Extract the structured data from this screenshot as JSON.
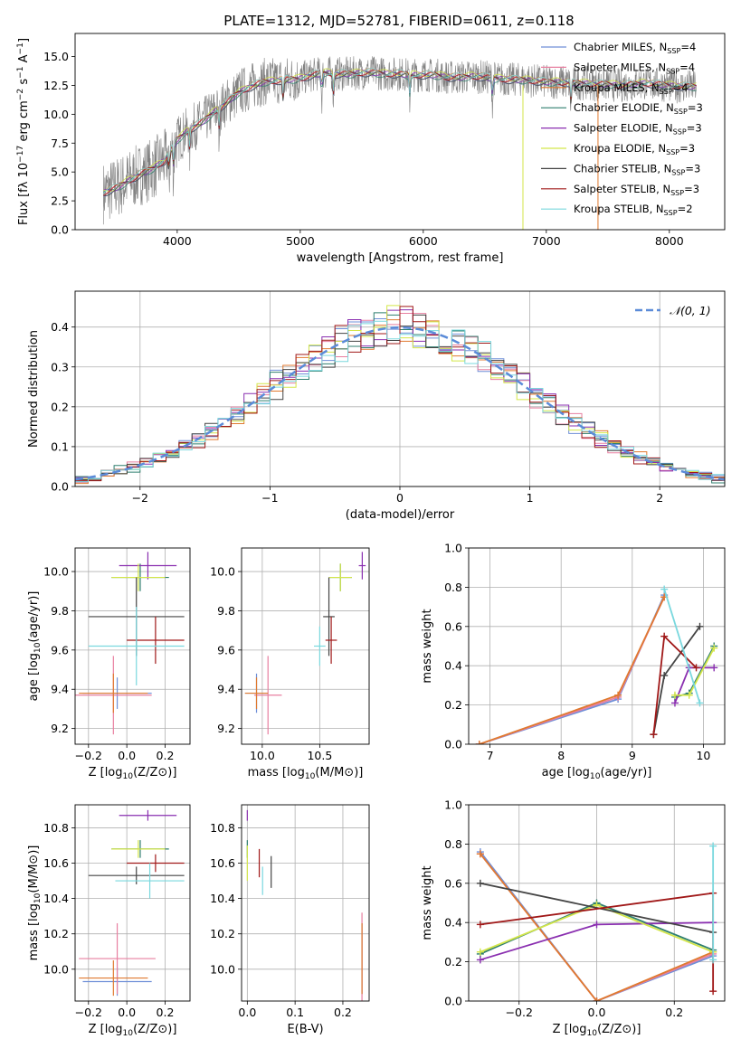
{
  "figure": {
    "title": "PLATE=1312, MJD=52781, FIBERID=0611, z=0.118",
    "series": [
      {
        "legend": "Chabrier MILES, N$_{SSP}$=4",
        "color": "#6f8fd8"
      },
      {
        "legend": "Salpeter MILES, N$_{SSP}$=4",
        "color": "#e87fa0"
      },
      {
        "legend": "Kroupa MILES, N$_{SSP}$=4",
        "color": "#e07a30"
      },
      {
        "legend": "Chabrier ELODIE, N$_{SSP}$=3",
        "color": "#2f7f6f"
      },
      {
        "legend": "Salpeter ELODIE, N$_{SSP}$=3",
        "color": "#8a2fb0"
      },
      {
        "legend": "Kroupa ELODIE, N$_{SSP}$=3",
        "color": "#d4e64a"
      },
      {
        "legend": "Chabrier STELIB, N$_{SSP}$=3",
        "color": "#444444"
      },
      {
        "legend": "Salpeter STELIB, N$_{SSP}$=3",
        "color": "#a01818"
      },
      {
        "legend": "Kroupa STELIB, N$_{SSP}$=2",
        "color": "#7ad8de"
      }
    ]
  },
  "chart_data": [
    {
      "id": "spectrum",
      "type": "line",
      "title": "PLATE=1312, MJD=52781, FIBERID=0611, z=0.118",
      "xlabel": "wavelength [Angstrom, rest frame]",
      "ylabel": "Flux [f$_\\lambda$ 10$^{-17}$ erg cm$^{-2}$ s$^{-1}$ A$^{-1}$]",
      "xlim": [
        3170,
        8450
      ],
      "ylim": [
        0,
        17
      ],
      "xticks": [
        4000,
        5000,
        6000,
        7000,
        8000
      ],
      "yticks": [
        0.0,
        2.5,
        5.0,
        7.5,
        10.0,
        12.5,
        15.0
      ],
      "grid": false,
      "legend_position": "top-right",
      "data_color": "#808080",
      "continuum": {
        "x": [
          3400,
          3500,
          3600,
          3700,
          3800,
          3900,
          4000,
          4100,
          4200,
          4300,
          4400,
          4500,
          4600,
          4700,
          4800,
          4900,
          5000,
          5100,
          5200,
          5300,
          5400,
          5500,
          5600,
          5700,
          5800,
          5900,
          6000,
          6100,
          6200,
          6300,
          6400,
          6500,
          6600,
          6700,
          6800,
          6900,
          7000,
          7100,
          7200,
          7300,
          7400,
          7500,
          7600,
          7700,
          7800,
          7900,
          8000,
          8100,
          8200
        ],
        "y": [
          3.2,
          3.6,
          4.2,
          4.8,
          5.3,
          6.0,
          7.8,
          8.7,
          9.3,
          10.2,
          11.0,
          11.9,
          12.4,
          12.8,
          12.9,
          13.0,
          13.1,
          13.4,
          13.6,
          13.5,
          13.5,
          13.6,
          13.6,
          13.5,
          13.5,
          13.4,
          13.4,
          13.4,
          13.2,
          13.2,
          13.3,
          13.2,
          13.1,
          13.0,
          13.0,
          12.9,
          12.8,
          12.8,
          12.7,
          12.7,
          12.6,
          12.6,
          12.5,
          12.6,
          12.7,
          12.6,
          12.5,
          12.4,
          12.4
        ]
      }
    },
    {
      "id": "residuals",
      "type": "histogram",
      "xlabel": "(data-model)/error",
      "ylabel": "Normed distribution",
      "xlim": [
        -2.5,
        2.5
      ],
      "ylim": [
        0,
        0.49
      ],
      "xticks": [
        -2,
        -1,
        0,
        1,
        2
      ],
      "yticks": [
        0.0,
        0.1,
        0.2,
        0.3,
        0.4
      ],
      "grid": true,
      "legend_position": "top-right",
      "reference_curve": {
        "label": "$\\mathcal{N}(0, 1)$",
        "mean": 0,
        "std": 1,
        "color": "#5b8bd8"
      },
      "bin_width": 0.1
    },
    {
      "id": "age-vs-Z",
      "type": "errorbar",
      "xlabel": "Z [log$_{10}$(Z/Z$_\\odot$)]",
      "ylabel": "age  [log$_{10}$(age/yr)]",
      "xlim": [
        -0.27,
        0.33
      ],
      "ylim": [
        9.12,
        10.12
      ],
      "xticks": [
        -0.2,
        0.0,
        0.2
      ],
      "yticks": [
        9.2,
        9.4,
        9.6,
        9.8,
        10.0
      ],
      "grid": true,
      "points": [
        {
          "series": 0,
          "x": -0.05,
          "y": 9.38,
          "xerr": 0.18,
          "yerr": 0.08
        },
        {
          "series": 1,
          "x": -0.07,
          "y": 9.37,
          "xerr": 0.2,
          "yerr": 0.2
        },
        {
          "series": 2,
          "x": -0.07,
          "y": 9.38,
          "xerr": 0.18,
          "yerr": 0.1
        },
        {
          "series": 3,
          "x": 0.07,
          "y": 9.97,
          "xerr": 0.15,
          "yerr": 0.07
        },
        {
          "series": 4,
          "x": 0.11,
          "y": 10.03,
          "xerr": 0.15,
          "yerr": 0.07
        },
        {
          "series": 5,
          "x": 0.06,
          "y": 9.97,
          "xerr": 0.14,
          "yerr": 0.07
        },
        {
          "series": 6,
          "x": 0.05,
          "y": 9.77,
          "xerr": 0.25,
          "yerr": 0.2
        },
        {
          "series": 7,
          "x": 0.15,
          "y": 9.65,
          "xerr": 0.15,
          "yerr": 0.12
        },
        {
          "series": 8,
          "x": 0.05,
          "y": 9.62,
          "xerr": 0.25,
          "yerr": 0.2
        }
      ]
    },
    {
      "id": "age-vs-mass",
      "type": "errorbar",
      "xlabel": "mass [log$_{10}$(M/M$_\\odot$)]",
      "ylabel": "",
      "xlim": [
        9.82,
        10.93
      ],
      "ylim": [
        9.12,
        10.12
      ],
      "xticks": [
        10.0,
        10.5
      ],
      "yticks": [
        9.2,
        9.4,
        9.6,
        9.8,
        10.0
      ],
      "grid": true,
      "points": [
        {
          "series": 0,
          "x": 9.95,
          "y": 9.38,
          "xerr": 0.1,
          "yerr": 0.1
        },
        {
          "series": 1,
          "x": 10.05,
          "y": 9.37,
          "xerr": 0.12,
          "yerr": 0.2
        },
        {
          "series": 2,
          "x": 9.95,
          "y": 9.38,
          "xerr": 0.1,
          "yerr": 0.08
        },
        {
          "series": 3,
          "x": 10.68,
          "y": 9.97,
          "xerr": 0.1,
          "yerr": 0.07
        },
        {
          "series": 4,
          "x": 10.87,
          "y": 10.03,
          "xerr": 0.03,
          "yerr": 0.07
        },
        {
          "series": 5,
          "x": 10.68,
          "y": 9.97,
          "xerr": 0.1,
          "yerr": 0.07
        },
        {
          "series": 6,
          "x": 10.58,
          "y": 9.77,
          "xerr": 0.05,
          "yerr": 0.2
        },
        {
          "series": 7,
          "x": 10.6,
          "y": 9.65,
          "xerr": 0.05,
          "yerr": 0.12
        },
        {
          "series": 8,
          "x": 10.5,
          "y": 9.62,
          "xerr": 0.05,
          "yerr": 0.1
        }
      ]
    },
    {
      "id": "weight-vs-age",
      "type": "line",
      "xlabel": "age  [log$_{10}$(age/yr)]",
      "ylabel": "mass weight",
      "xlim": [
        6.7,
        10.3
      ],
      "ylim": [
        0,
        1
      ],
      "xticks": [
        7,
        8,
        9,
        10
      ],
      "yticks": [
        0.0,
        0.2,
        0.4,
        0.6,
        0.8,
        1.0
      ],
      "grid": true,
      "series": [
        {
          "series": 0,
          "x": [
            6.85,
            8.8,
            9.45
          ],
          "y": [
            0.0,
            0.23,
            0.76
          ]
        },
        {
          "series": 1,
          "x": [
            6.85,
            8.8,
            9.45
          ],
          "y": [
            0.0,
            0.24,
            0.75
          ]
        },
        {
          "series": 2,
          "x": [
            6.85,
            8.8,
            9.45
          ],
          "y": [
            0.0,
            0.25,
            0.75
          ]
        },
        {
          "series": 3,
          "x": [
            9.6,
            9.8,
            10.15
          ],
          "y": [
            0.24,
            0.26,
            0.5
          ]
        },
        {
          "series": 4,
          "x": [
            9.6,
            9.8,
            10.15
          ],
          "y": [
            0.21,
            0.39,
            0.39
          ]
        },
        {
          "series": 5,
          "x": [
            9.6,
            9.8,
            10.15
          ],
          "y": [
            0.25,
            0.25,
            0.49
          ]
        },
        {
          "series": 6,
          "x": [
            9.3,
            9.45,
            9.95
          ],
          "y": [
            0.05,
            0.35,
            0.6
          ]
        },
        {
          "series": 7,
          "x": [
            9.3,
            9.45,
            9.9
          ],
          "y": [
            0.05,
            0.55,
            0.39
          ]
        },
        {
          "series": 8,
          "x": [
            9.45,
            9.95
          ],
          "y": [
            0.79,
            0.21
          ]
        }
      ]
    },
    {
      "id": "mass-vs-Z",
      "type": "errorbar",
      "xlabel": "Z [log$_{10}$(Z/Z$_\\odot$)]",
      "ylabel": "mass [log$_{10}$(M/M$_\\odot$)]",
      "xlim": [
        -0.27,
        0.33
      ],
      "ylim": [
        9.82,
        10.93
      ],
      "xticks": [
        -0.2,
        0.0,
        0.2
      ],
      "yticks": [
        10.0,
        10.2,
        10.4,
        10.6,
        10.8
      ],
      "grid": true,
      "points": [
        {
          "series": 0,
          "x": -0.05,
          "y": 9.93,
          "xerr": 0.18,
          "yerr": 0.08
        },
        {
          "series": 1,
          "x": -0.05,
          "y": 10.06,
          "xerr": 0.2,
          "yerr": 0.2
        },
        {
          "series": 2,
          "x": -0.07,
          "y": 9.95,
          "xerr": 0.18,
          "yerr": 0.1
        },
        {
          "series": 3,
          "x": 0.07,
          "y": 10.68,
          "xerr": 0.15,
          "yerr": 0.05
        },
        {
          "series": 4,
          "x": 0.11,
          "y": 10.87,
          "xerr": 0.15,
          "yerr": 0.03
        },
        {
          "series": 5,
          "x": 0.06,
          "y": 10.68,
          "xerr": 0.14,
          "yerr": 0.05
        },
        {
          "series": 6,
          "x": 0.05,
          "y": 10.53,
          "xerr": 0.25,
          "yerr": 0.05
        },
        {
          "series": 7,
          "x": 0.15,
          "y": 10.6,
          "xerr": 0.15,
          "yerr": 0.05
        },
        {
          "series": 8,
          "x": 0.12,
          "y": 10.5,
          "xerr": 0.18,
          "yerr": 0.1
        }
      ]
    },
    {
      "id": "mass-vs-ebv",
      "type": "errorbar",
      "xlabel": "E(B-V)",
      "ylabel": "",
      "xlim": [
        -0.012,
        0.255
      ],
      "ylim": [
        9.82,
        10.93
      ],
      "xticks": [
        0.0,
        0.1,
        0.2
      ],
      "yticks": [
        10.0,
        10.2,
        10.4,
        10.6,
        10.8
      ],
      "grid": true,
      "points": [
        {
          "series": 0,
          "x": 0.24,
          "y": 10.06,
          "xerr": 0,
          "yerr": 0.2
        },
        {
          "series": 1,
          "x": 0.24,
          "y": 10.06,
          "xerr": 0,
          "yerr": 0.26
        },
        {
          "series": 2,
          "x": 0.24,
          "y": 10.06,
          "xerr": 0,
          "yerr": 0.2
        },
        {
          "series": 3,
          "x": 0.0,
          "y": 10.68,
          "xerr": 0,
          "yerr": 0.05
        },
        {
          "series": 4,
          "x": 0.0,
          "y": 10.87,
          "xerr": 0,
          "yerr": 0.03
        },
        {
          "series": 5,
          "x": 0.0,
          "y": 10.6,
          "xerr": 0,
          "yerr": 0.1
        },
        {
          "series": 6,
          "x": 0.05,
          "y": 10.55,
          "xerr": 0,
          "yerr": 0.09
        },
        {
          "series": 7,
          "x": 0.025,
          "y": 10.6,
          "xerr": 0,
          "yerr": 0.08
        },
        {
          "series": 8,
          "x": 0.032,
          "y": 10.5,
          "xerr": 0,
          "yerr": 0.08
        }
      ]
    },
    {
      "id": "weight-vs-Z",
      "type": "line",
      "xlabel": "Z [log$_{10}$(Z/Z$_\\odot$)]",
      "ylabel": "mass weight",
      "xlim": [
        -0.33,
        0.33
      ],
      "ylim": [
        0,
        1
      ],
      "xticks": [
        -0.2,
        0.0,
        0.2
      ],
      "yticks": [
        0.0,
        0.2,
        0.4,
        0.6,
        0.8,
        1.0
      ],
      "grid": true,
      "series": [
        {
          "series": 0,
          "x": [
            -0.3,
            0.0,
            0.3
          ],
          "y": [
            0.76,
            0.0,
            0.23
          ]
        },
        {
          "series": 1,
          "x": [
            -0.3,
            0.0,
            0.3
          ],
          "y": [
            0.75,
            0.0,
            0.24
          ]
        },
        {
          "series": 2,
          "x": [
            -0.3,
            0.0,
            0.3
          ],
          "y": [
            0.75,
            0.0,
            0.25
          ]
        },
        {
          "series": 3,
          "x": [
            -0.3,
            0.0,
            0.3
          ],
          "y": [
            0.24,
            0.5,
            0.26
          ]
        },
        {
          "series": 4,
          "x": [
            -0.3,
            0.0,
            0.3
          ],
          "y": [
            0.21,
            0.39,
            0.4
          ]
        },
        {
          "series": 5,
          "x": [
            -0.3,
            0.0,
            0.3
          ],
          "y": [
            0.25,
            0.49,
            0.25
          ]
        },
        {
          "series": 6,
          "x": [
            -0.3,
            0.3
          ],
          "y": [
            0.6,
            0.35
          ]
        },
        {
          "series": 7,
          "x": [
            -0.3,
            0.3,
            0.3
          ],
          "y": [
            0.39,
            0.55,
            0.05
          ]
        },
        {
          "series": 8,
          "x": [
            0.3,
            0.3
          ],
          "y": [
            0.21,
            0.79
          ]
        }
      ]
    }
  ]
}
